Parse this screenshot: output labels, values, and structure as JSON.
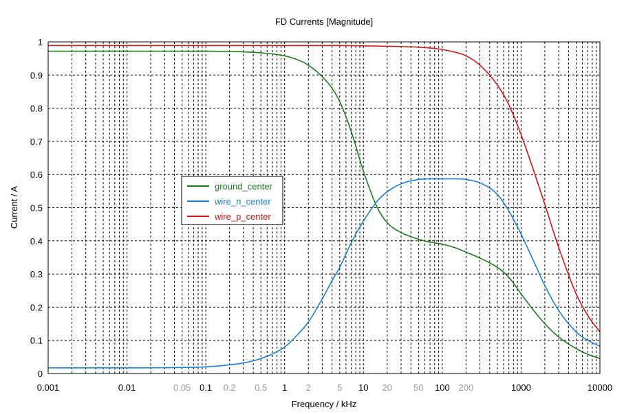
{
  "chart_data": {
    "type": "line",
    "title": "FD Currents [Magnitude]",
    "xlabel": "Frequency / kHz",
    "ylabel": "Current / A",
    "x_scale": "log",
    "xlim": [
      0.001,
      10000
    ],
    "ylim": [
      0,
      1
    ],
    "grid": true,
    "legend_position": "center-left",
    "x_ticks": [
      {
        "value": 0.001,
        "label": "0.001",
        "minor": false
      },
      {
        "value": 0.01,
        "label": "0.01",
        "minor": false
      },
      {
        "value": 0.05,
        "label": "0.05",
        "minor": true
      },
      {
        "value": 0.1,
        "label": "0.1",
        "minor": false
      },
      {
        "value": 0.2,
        "label": "0.2",
        "minor": true
      },
      {
        "value": 0.5,
        "label": "0.5",
        "minor": true
      },
      {
        "value": 1,
        "label": "1",
        "minor": false
      },
      {
        "value": 2,
        "label": "2",
        "minor": true
      },
      {
        "value": 5,
        "label": "5",
        "minor": true
      },
      {
        "value": 10,
        "label": "10",
        "minor": false
      },
      {
        "value": 20,
        "label": "20",
        "minor": true
      },
      {
        "value": 50,
        "label": "50",
        "minor": true
      },
      {
        "value": 100,
        "label": "100",
        "minor": false
      },
      {
        "value": 200,
        "label": "200",
        "minor": true
      },
      {
        "value": 1000,
        "label": "1000",
        "minor": false
      },
      {
        "value": 10000,
        "label": "10000",
        "minor": false
      }
    ],
    "y_ticks": [
      {
        "value": 0,
        "label": "0"
      },
      {
        "value": 0.1,
        "label": "0.1"
      },
      {
        "value": 0.2,
        "label": "0.2"
      },
      {
        "value": 0.3,
        "label": "0.3"
      },
      {
        "value": 0.4,
        "label": "0.4"
      },
      {
        "value": 0.5,
        "label": "0.5"
      },
      {
        "value": 0.6,
        "label": "0.6"
      },
      {
        "value": 0.7,
        "label": "0.7"
      },
      {
        "value": 0.8,
        "label": "0.8"
      },
      {
        "value": 0.9,
        "label": "0.9"
      },
      {
        "value": 1,
        "label": "1"
      }
    ],
    "series": [
      {
        "name": "ground_center",
        "color": "#1e7a1e",
        "x": [
          0.001,
          0.01,
          0.1,
          0.2,
          0.5,
          1,
          1.5,
          2,
          3,
          4,
          5,
          7,
          10,
          15,
          20,
          30,
          50,
          70,
          100,
          150,
          200,
          300,
          500,
          700,
          1000,
          1500,
          2000,
          3000,
          5000,
          7000,
          10000
        ],
        "y": [
          0.972,
          0.972,
          0.972,
          0.971,
          0.967,
          0.958,
          0.945,
          0.93,
          0.895,
          0.86,
          0.82,
          0.73,
          0.61,
          0.5,
          0.455,
          0.425,
          0.405,
          0.396,
          0.39,
          0.378,
          0.366,
          0.348,
          0.32,
          0.29,
          0.24,
          0.185,
          0.15,
          0.11,
          0.075,
          0.058,
          0.045
        ]
      },
      {
        "name": "wire_n_center",
        "color": "#1c7fd4",
        "x": [
          0.001,
          0.01,
          0.05,
          0.1,
          0.2,
          0.3,
          0.5,
          1,
          1.5,
          2,
          3,
          4,
          5,
          7,
          10,
          15,
          20,
          30,
          50,
          70,
          100,
          150,
          200,
          300,
          500,
          700,
          1000,
          1500,
          2000,
          3000,
          5000,
          7000,
          10000
        ],
        "y": [
          0.017,
          0.017,
          0.018,
          0.02,
          0.026,
          0.032,
          0.045,
          0.08,
          0.12,
          0.155,
          0.225,
          0.28,
          0.32,
          0.395,
          0.46,
          0.52,
          0.548,
          0.572,
          0.585,
          0.587,
          0.587,
          0.587,
          0.585,
          0.575,
          0.54,
          0.49,
          0.42,
          0.33,
          0.265,
          0.19,
          0.125,
          0.1,
          0.082
        ]
      },
      {
        "name": "wire_p_center",
        "color": "#d01515",
        "x": [
          0.001,
          0.01,
          0.1,
          1,
          5,
          10,
          30,
          50,
          100,
          150,
          200,
          300,
          500,
          700,
          1000,
          1500,
          2000,
          3000,
          5000,
          7000,
          10000
        ],
        "y": [
          0.989,
          0.989,
          0.989,
          0.989,
          0.989,
          0.988,
          0.986,
          0.984,
          0.977,
          0.968,
          0.958,
          0.93,
          0.87,
          0.81,
          0.72,
          0.6,
          0.51,
          0.38,
          0.24,
          0.175,
          0.125
        ]
      }
    ]
  }
}
